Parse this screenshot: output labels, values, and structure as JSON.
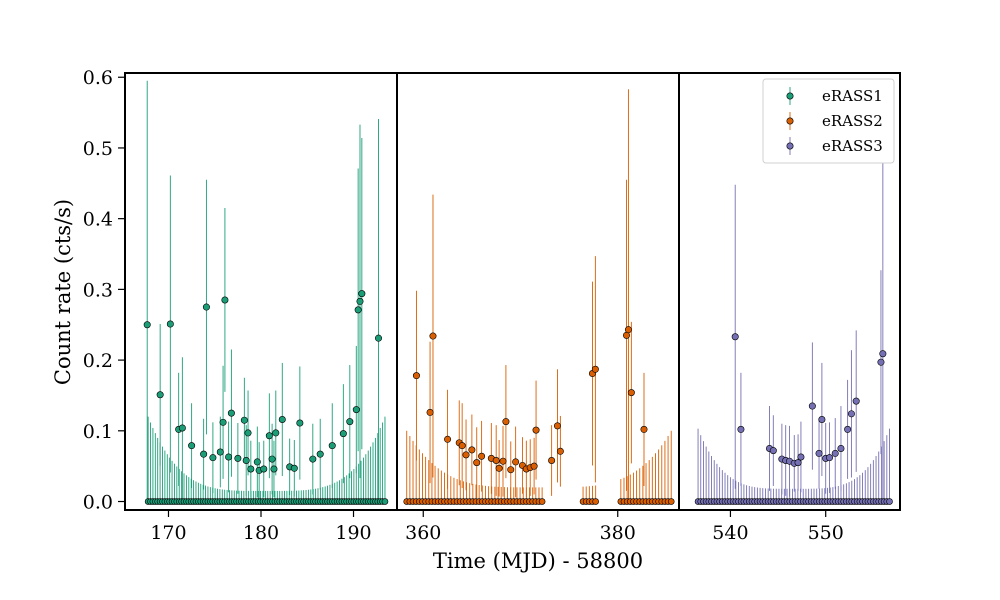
{
  "chart_data": {
    "type": "scatter",
    "title": "",
    "xlabel": "Time (MJD) - 58800",
    "ylabel": "Count rate (cts/s)",
    "ylim": [
      -0.012,
      0.606
    ],
    "yticks": [
      0.0,
      0.1,
      0.2,
      0.3,
      0.4,
      0.5,
      0.6
    ],
    "ytick_labels": [
      "0.0",
      "0.1",
      "0.2",
      "0.3",
      "0.4",
      "0.5",
      "0.6"
    ],
    "legend": {
      "placement": "top-right"
    },
    "panels": [
      {
        "xlim": [
          165.3,
          194.7
        ],
        "xticks": [
          170,
          180,
          190
        ],
        "xtick_labels": [
          "170",
          "180",
          "190"
        ]
      },
      {
        "xlim": [
          357.3,
          386.3
        ],
        "xticks": [
          360,
          380
        ],
        "xtick_labels": [
          "360",
          "380"
        ]
      },
      {
        "xlim": [
          534.6,
          557.8
        ],
        "xticks": [
          540,
          550
        ],
        "xtick_labels": [
          "540",
          "550"
        ]
      }
    ],
    "series": [
      {
        "name": "eRASS1",
        "color": "#1b9e77",
        "panel": 0,
        "zero_span": [
          167.8,
          193.4
        ],
        "zero_count": 100,
        "err_base": 0.015,
        "err_amp": 0.105,
        "detections": [
          {
            "x": 167.7,
            "y": 0.25,
            "yerr": 0.345
          },
          {
            "x": 169.1,
            "y": 0.151,
            "yerr": 0.1
          },
          {
            "x": 170.2,
            "y": 0.251,
            "yerr": 0.21
          },
          {
            "x": 171.1,
            "y": 0.102,
            "yerr": 0.08
          },
          {
            "x": 171.5,
            "y": 0.104,
            "yerr": 0.1
          },
          {
            "x": 172.5,
            "y": 0.079,
            "yerr": 0.06
          },
          {
            "x": 173.8,
            "y": 0.067,
            "yerr": 0.05
          },
          {
            "x": 174.1,
            "y": 0.275,
            "yerr": 0.18
          },
          {
            "x": 174.8,
            "y": 0.062,
            "yerr": 0.05
          },
          {
            "x": 175.6,
            "y": 0.07,
            "yerr": 0.05
          },
          {
            "x": 175.9,
            "y": 0.112,
            "yerr": 0.08
          },
          {
            "x": 176.1,
            "y": 0.285,
            "yerr": 0.13
          },
          {
            "x": 176.5,
            "y": 0.063,
            "yerr": 0.05
          },
          {
            "x": 176.8,
            "y": 0.125,
            "yerr": 0.09
          },
          {
            "x": 177.5,
            "y": 0.061,
            "yerr": 0.05
          },
          {
            "x": 178.2,
            "y": 0.115,
            "yerr": 0.06
          },
          {
            "x": 178.4,
            "y": 0.058,
            "yerr": 0.05
          },
          {
            "x": 178.6,
            "y": 0.097,
            "yerr": 0.06
          },
          {
            "x": 178.9,
            "y": 0.046,
            "yerr": 0.04
          },
          {
            "x": 179.6,
            "y": 0.056,
            "yerr": 0.05
          },
          {
            "x": 179.8,
            "y": 0.044,
            "yerr": 0.04
          },
          {
            "x": 180.3,
            "y": 0.046,
            "yerr": 0.04
          },
          {
            "x": 180.9,
            "y": 0.093,
            "yerr": 0.06
          },
          {
            "x": 181.2,
            "y": 0.06,
            "yerr": 0.05
          },
          {
            "x": 181.4,
            "y": 0.046,
            "yerr": 0.04
          },
          {
            "x": 181.6,
            "y": 0.097,
            "yerr": 0.06
          },
          {
            "x": 182.3,
            "y": 0.116,
            "yerr": 0.08
          },
          {
            "x": 183.1,
            "y": 0.049,
            "yerr": 0.04
          },
          {
            "x": 183.6,
            "y": 0.047,
            "yerr": 0.04
          },
          {
            "x": 184.2,
            "y": 0.111,
            "yerr": 0.08
          },
          {
            "x": 185.6,
            "y": 0.06,
            "yerr": 0.05
          },
          {
            "x": 186.4,
            "y": 0.067,
            "yerr": 0.05
          },
          {
            "x": 187.7,
            "y": 0.079,
            "yerr": 0.06
          },
          {
            "x": 188.9,
            "y": 0.096,
            "yerr": 0.07
          },
          {
            "x": 189.6,
            "y": 0.113,
            "yerr": 0.08
          },
          {
            "x": 190.3,
            "y": 0.13,
            "yerr": 0.09
          },
          {
            "x": 190.5,
            "y": 0.271,
            "yerr": 0.2
          },
          {
            "x": 190.7,
            "y": 0.283,
            "yerr": 0.25
          },
          {
            "x": 190.9,
            "y": 0.294,
            "yerr": 0.22
          },
          {
            "x": 192.7,
            "y": 0.231,
            "yerr": 0.31
          }
        ]
      },
      {
        "name": "eRASS2",
        "color": "#d95f02",
        "panel": 1,
        "zero_span": [
          358.3,
          385.5
        ],
        "zero_gaps": [
          [
            372.5,
            376.3
          ],
          [
            377.9,
            380.3
          ]
        ],
        "zero_count": 85,
        "err_base": 0.02,
        "err_amp": 0.08,
        "detections": [
          {
            "x": 359.3,
            "y": 0.178,
            "yerr": 0.12
          },
          {
            "x": 360.7,
            "y": 0.126,
            "yerr": 0.1
          },
          {
            "x": 361.0,
            "y": 0.234,
            "yerr": 0.2
          },
          {
            "x": 362.5,
            "y": 0.088,
            "yerr": 0.07
          },
          {
            "x": 363.7,
            "y": 0.083,
            "yerr": 0.06
          },
          {
            "x": 364.0,
            "y": 0.079,
            "yerr": 0.06
          },
          {
            "x": 364.4,
            "y": 0.066,
            "yerr": 0.05
          },
          {
            "x": 365.0,
            "y": 0.073,
            "yerr": 0.05
          },
          {
            "x": 365.5,
            "y": 0.055,
            "yerr": 0.05
          },
          {
            "x": 366.0,
            "y": 0.064,
            "yerr": 0.05
          },
          {
            "x": 367.0,
            "y": 0.061,
            "yerr": 0.05
          },
          {
            "x": 367.5,
            "y": 0.058,
            "yerr": 0.05
          },
          {
            "x": 367.8,
            "y": 0.047,
            "yerr": 0.04
          },
          {
            "x": 368.2,
            "y": 0.057,
            "yerr": 0.05
          },
          {
            "x": 368.5,
            "y": 0.113,
            "yerr": 0.08
          },
          {
            "x": 369.0,
            "y": 0.045,
            "yerr": 0.04
          },
          {
            "x": 369.5,
            "y": 0.056,
            "yerr": 0.05
          },
          {
            "x": 370.2,
            "y": 0.051,
            "yerr": 0.04
          },
          {
            "x": 370.6,
            "y": 0.046,
            "yerr": 0.04
          },
          {
            "x": 371.0,
            "y": 0.048,
            "yerr": 0.04
          },
          {
            "x": 371.4,
            "y": 0.05,
            "yerr": 0.04
          },
          {
            "x": 371.6,
            "y": 0.101,
            "yerr": 0.07
          },
          {
            "x": 373.2,
            "y": 0.058,
            "yerr": 0.05
          },
          {
            "x": 373.8,
            "y": 0.107,
            "yerr": 0.08
          },
          {
            "x": 374.1,
            "y": 0.071,
            "yerr": 0.05
          },
          {
            "x": 377.4,
            "y": 0.181,
            "yerr": 0.13
          },
          {
            "x": 377.7,
            "y": 0.187,
            "yerr": 0.16
          },
          {
            "x": 380.9,
            "y": 0.235,
            "yerr": 0.22
          },
          {
            "x": 381.1,
            "y": 0.243,
            "yerr": 0.34
          },
          {
            "x": 381.4,
            "y": 0.154,
            "yerr": 0.1
          },
          {
            "x": 382.7,
            "y": 0.102,
            "yerr": 0.08
          }
        ]
      },
      {
        "name": "eRASS3",
        "color": "#7570b3",
        "panel": 2,
        "zero_span": [
          536.6,
          556.7
        ],
        "zero_count": 72,
        "err_base": 0.018,
        "err_amp": 0.085,
        "detections": [
          {
            "x": 540.5,
            "y": 0.233,
            "yerr": 0.215
          },
          {
            "x": 541.1,
            "y": 0.102,
            "yerr": 0.08
          },
          {
            "x": 544.1,
            "y": 0.075,
            "yerr": 0.06
          },
          {
            "x": 544.5,
            "y": 0.072,
            "yerr": 0.05
          },
          {
            "x": 545.4,
            "y": 0.06,
            "yerr": 0.05
          },
          {
            "x": 545.8,
            "y": 0.058,
            "yerr": 0.05
          },
          {
            "x": 546.2,
            "y": 0.057,
            "yerr": 0.05
          },
          {
            "x": 546.7,
            "y": 0.054,
            "yerr": 0.04
          },
          {
            "x": 547.1,
            "y": 0.055,
            "yerr": 0.04
          },
          {
            "x": 547.4,
            "y": 0.063,
            "yerr": 0.05
          },
          {
            "x": 548.6,
            "y": 0.135,
            "yerr": 0.09
          },
          {
            "x": 549.3,
            "y": 0.068,
            "yerr": 0.05
          },
          {
            "x": 549.6,
            "y": 0.116,
            "yerr": 0.08
          },
          {
            "x": 550.0,
            "y": 0.061,
            "yerr": 0.05
          },
          {
            "x": 550.4,
            "y": 0.062,
            "yerr": 0.05
          },
          {
            "x": 551.0,
            "y": 0.068,
            "yerr": 0.05
          },
          {
            "x": 551.6,
            "y": 0.075,
            "yerr": 0.06
          },
          {
            "x": 552.3,
            "y": 0.102,
            "yerr": 0.07
          },
          {
            "x": 552.7,
            "y": 0.124,
            "yerr": 0.09
          },
          {
            "x": 553.2,
            "y": 0.142,
            "yerr": 0.1
          },
          {
            "x": 555.8,
            "y": 0.197,
            "yerr": 0.13
          },
          {
            "x": 556.0,
            "y": 0.209,
            "yerr": 0.27
          }
        ]
      }
    ]
  }
}
